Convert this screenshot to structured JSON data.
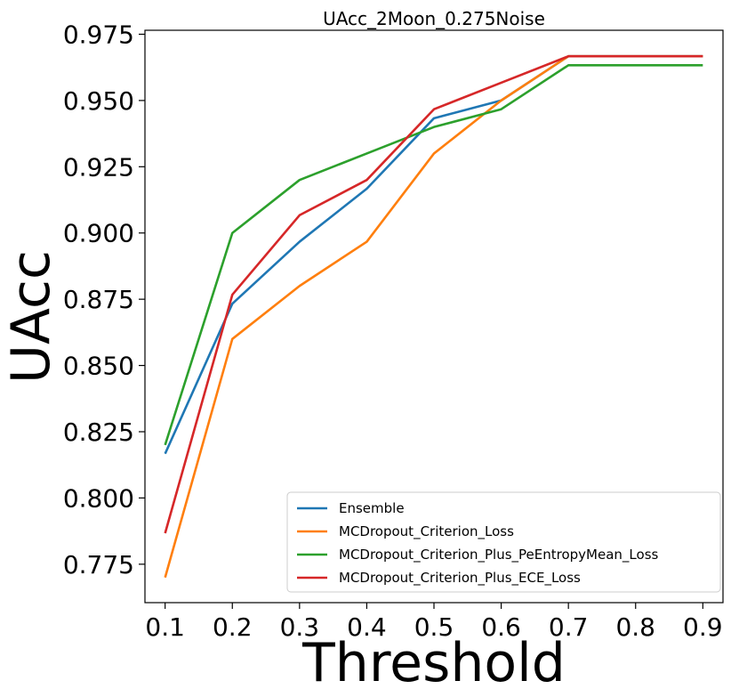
{
  "chart_data": {
    "type": "line",
    "title": "UAcc_2Moon_0.275Noise",
    "xlabel": "Threshold",
    "ylabel": "UAcc",
    "x": [
      0.1,
      0.2,
      0.3,
      0.4,
      0.5,
      0.6,
      0.7,
      0.8,
      0.9
    ],
    "x_tick_labels": [
      "0.1",
      "0.2",
      "0.3",
      "0.4",
      "0.5",
      "0.6",
      "0.7",
      "0.8",
      "0.9"
    ],
    "y_ticks": [
      0.775,
      0.8,
      0.825,
      0.85,
      0.875,
      0.9,
      0.925,
      0.95,
      0.975
    ],
    "y_tick_labels": [
      "0.775",
      "0.800",
      "0.825",
      "0.850",
      "0.875",
      "0.900",
      "0.925",
      "0.950",
      "0.975"
    ],
    "xlim": [
      0.07,
      0.93
    ],
    "ylim": [
      0.7605,
      0.9765
    ],
    "grid": false,
    "legend_position": "lower-right",
    "series": [
      {
        "name": "Ensemble",
        "color": "#1f77b4",
        "values": [
          0.8167,
          0.8733,
          0.8967,
          0.9167,
          0.9433,
          0.95,
          0.9667,
          0.9667,
          0.9667
        ]
      },
      {
        "name": "MCDropout_Criterion_Loss",
        "color": "#ff7f0e",
        "values": [
          0.77,
          0.86,
          0.88,
          0.8967,
          0.93,
          0.95,
          0.9667,
          0.9667,
          0.9667
        ]
      },
      {
        "name": "MCDropout_Criterion_Plus_PeEntropyMean_Loss",
        "color": "#2ca02c",
        "values": [
          0.82,
          0.9,
          0.92,
          0.93,
          0.94,
          0.9467,
          0.9633,
          0.9633,
          0.9633
        ]
      },
      {
        "name": "MCDropout_Criterion_Plus_ECE_Loss",
        "color": "#d62728",
        "values": [
          0.7867,
          0.8767,
          0.9067,
          0.92,
          0.9467,
          0.9567,
          0.9667,
          0.9667,
          0.9667
        ]
      }
    ]
  }
}
